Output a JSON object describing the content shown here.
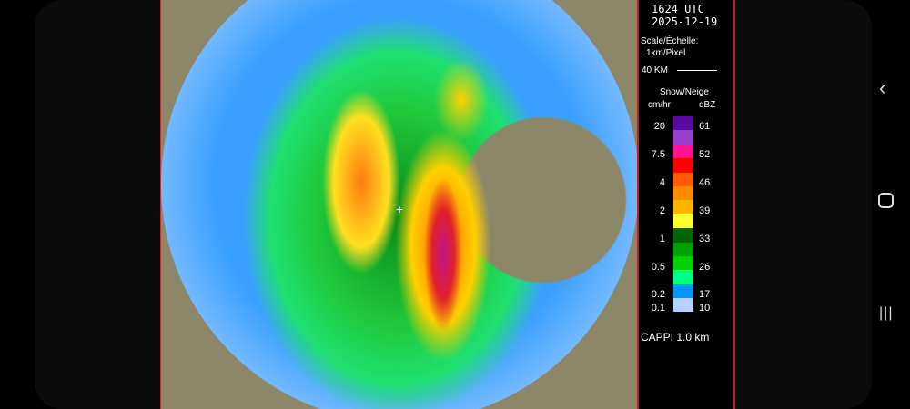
{
  "header": {
    "time": "1624 UTC",
    "date": "2025-12-19"
  },
  "scale": {
    "label": "Scale/Échelle:",
    "resolution": "1km/Pixel",
    "bar_label": "40 KM"
  },
  "legend": {
    "title": "Snow/Neige",
    "left_unit": "cm/hr",
    "right_unit": "dBZ",
    "colors": [
      "#5a0aa0",
      "#9a40d0",
      "#ff1490",
      "#ff0000",
      "#ff5a00",
      "#ff8c00",
      "#ffb400",
      "#ffff30",
      "#006400",
      "#00a000",
      "#00d000",
      "#00ff80",
      "#0096ff",
      "#b4d2ff"
    ],
    "left_labels": [
      "20",
      "7.5",
      "4",
      "2",
      "1",
      "0.5",
      "0.2",
      "0.1"
    ],
    "right_labels": [
      "61",
      "52",
      "46",
      "39",
      "33",
      "26",
      "17",
      "10"
    ]
  },
  "product": "CAPPI  1.0 km",
  "nav": {
    "back": "back-icon",
    "home": "home-icon",
    "recents": "recents-icon"
  }
}
